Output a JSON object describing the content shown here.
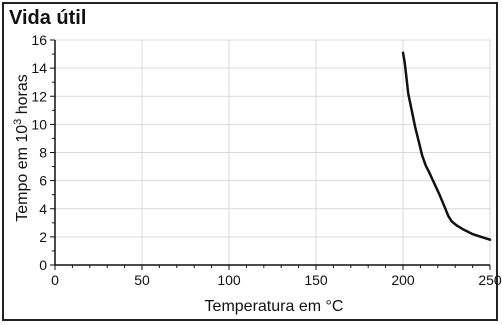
{
  "chart_data": {
    "type": "line",
    "title": "Vida útil",
    "xlabel": "Temperatura em °C",
    "ylabel_main": "Tempo em 10",
    "ylabel_sup": "3",
    "ylabel_end": " horas",
    "xlim": [
      0,
      250
    ],
    "ylim": [
      0,
      16
    ],
    "x_ticks": [
      0,
      50,
      100,
      150,
      200,
      250
    ],
    "y_ticks": [
      0,
      2,
      4,
      6,
      8,
      10,
      12,
      14,
      16
    ],
    "grid": true,
    "line_color": "#111111",
    "grid_color": "#d9d9d9",
    "series": [
      {
        "x": [
          200,
          201,
          202,
          203,
          205,
          207,
          209,
          211,
          213,
          215,
          218,
          221,
          224,
          226,
          228,
          231,
          235,
          240,
          245,
          250
        ],
        "y": [
          15.1,
          14.4,
          13.3,
          12.2,
          11.0,
          9.8,
          8.8,
          7.8,
          7.1,
          6.6,
          5.8,
          5.0,
          4.1,
          3.5,
          3.1,
          2.8,
          2.5,
          2.2,
          2.0,
          1.8
        ]
      }
    ]
  }
}
